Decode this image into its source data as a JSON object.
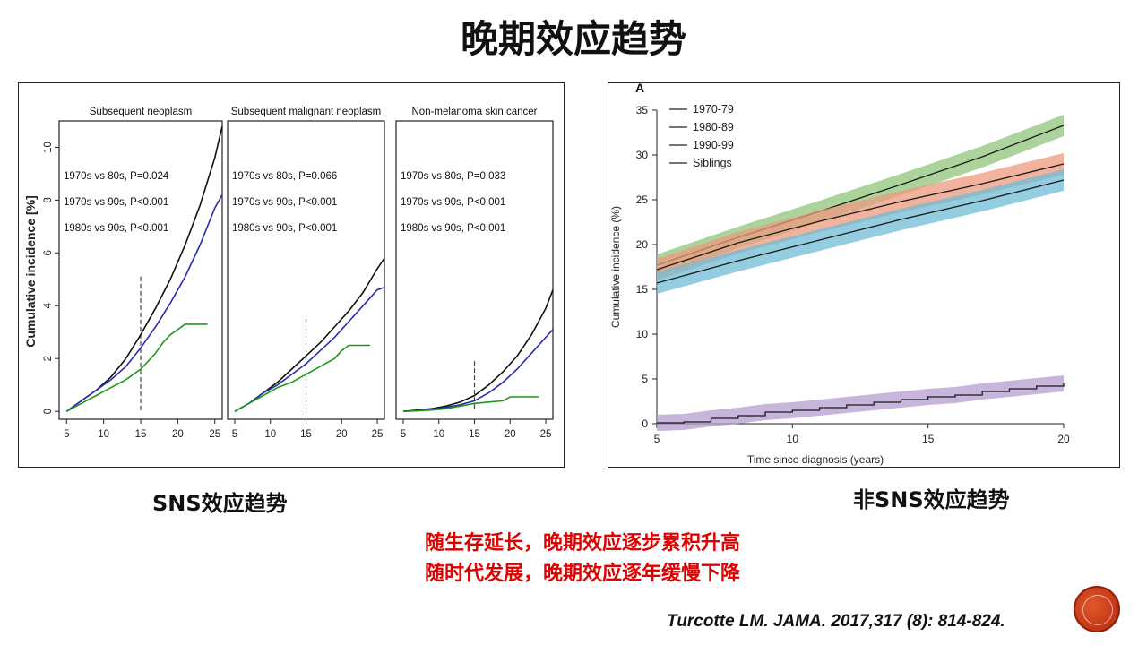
{
  "slide": {
    "title": "晚期效应趋势",
    "caption_left": "SNS效应趋势",
    "caption_right": "非SNS效应趋势",
    "conclusions": [
      "随生存延长，晚期效应逐步累积升高",
      "随时代发展，晚期效应逐年缓慢下降"
    ],
    "citation": "Turcotte LM. JAMA. 2017,317 (8): 814-824."
  },
  "chart_data": [
    {
      "type": "line",
      "panel_group": "SNS",
      "ylabel": "Cumulative incidence [%]",
      "xlim": [
        4,
        26
      ],
      "ylim": [
        -0.3,
        11
      ],
      "xticks": [
        5,
        10,
        15,
        20,
        25
      ],
      "yticks": [
        0,
        2,
        4,
        6,
        8,
        10
      ],
      "colors": [
        "#111111",
        "#2b2bb0",
        "#1a9a1a"
      ],
      "vline": 15,
      "panels": [
        {
          "title": "Subsequent neoplasm",
          "annotations": [
            "1970s vs 80s, P=0.024",
            "1970s vs 90s, P<0.001",
            "1980s vs 90s, P<0.001"
          ],
          "series": [
            {
              "x": [
                5,
                7,
                9,
                11,
                13,
                15,
                17,
                19,
                21,
                23,
                25,
                26
              ],
              "values": [
                0,
                0.4,
                0.8,
                1.3,
                2.0,
                2.9,
                3.9,
                5.0,
                6.3,
                7.8,
                9.6,
                10.8
              ]
            },
            {
              "x": [
                5,
                7,
                9,
                11,
                13,
                15,
                17,
                19,
                21,
                23,
                25,
                26
              ],
              "values": [
                0,
                0.4,
                0.8,
                1.2,
                1.7,
                2.4,
                3.2,
                4.1,
                5.1,
                6.3,
                7.7,
                8.2
              ]
            },
            {
              "x": [
                5,
                7,
                9,
                11,
                13,
                15,
                16,
                17,
                18,
                19,
                20,
                21,
                24
              ],
              "values": [
                0,
                0.3,
                0.6,
                0.9,
                1.2,
                1.6,
                1.9,
                2.2,
                2.6,
                2.9,
                3.1,
                3.3,
                3.3
              ]
            }
          ]
        },
        {
          "title": "Subsequent malignant neoplasm",
          "annotations": [
            "1970s vs 80s, P=0.066",
            "1970s vs 90s, P<0.001",
            "1980s vs 90s, P<0.001"
          ],
          "series": [
            {
              "x": [
                5,
                7,
                9,
                11,
                13,
                15,
                17,
                19,
                21,
                23,
                25,
                26
              ],
              "values": [
                0,
                0.3,
                0.7,
                1.1,
                1.6,
                2.1,
                2.6,
                3.2,
                3.8,
                4.5,
                5.4,
                5.8
              ]
            },
            {
              "x": [
                5,
                7,
                9,
                11,
                13,
                15,
                17,
                19,
                21,
                23,
                25,
                26
              ],
              "values": [
                0,
                0.3,
                0.7,
                1.0,
                1.4,
                1.8,
                2.3,
                2.8,
                3.4,
                4.0,
                4.6,
                4.7
              ]
            },
            {
              "x": [
                5,
                7,
                9,
                11,
                13,
                15,
                17,
                19,
                20,
                21,
                24
              ],
              "values": [
                0,
                0.3,
                0.6,
                0.9,
                1.1,
                1.4,
                1.7,
                2.0,
                2.3,
                2.5,
                2.5
              ]
            }
          ]
        },
        {
          "title": "Non-melanoma skin cancer",
          "annotations": [
            "1970s vs 80s, P=0.033",
            "1970s vs 90s, P<0.001",
            "1980s vs 90s, P<0.001"
          ],
          "series": [
            {
              "x": [
                5,
                7,
                9,
                11,
                13,
                15,
                17,
                19,
                21,
                23,
                25,
                26
              ],
              "values": [
                0,
                0.05,
                0.1,
                0.2,
                0.35,
                0.6,
                1.0,
                1.5,
                2.1,
                2.9,
                3.9,
                4.6
              ]
            },
            {
              "x": [
                5,
                7,
                9,
                11,
                13,
                15,
                17,
                19,
                21,
                23,
                25,
                26
              ],
              "values": [
                0,
                0.03,
                0.08,
                0.15,
                0.25,
                0.4,
                0.7,
                1.1,
                1.6,
                2.2,
                2.8,
                3.1
              ]
            },
            {
              "x": [
                5,
                7,
                9,
                11,
                13,
                15,
                17,
                19,
                20,
                24
              ],
              "values": [
                0,
                0.02,
                0.05,
                0.1,
                0.2,
                0.3,
                0.35,
                0.4,
                0.55,
                0.55
              ]
            }
          ]
        }
      ]
    },
    {
      "type": "line",
      "panel_group": "non-SNS",
      "panel_label": "A",
      "xlabel": "Time since diagnosis (years)",
      "ylabel": "Cumulative incidence (%)",
      "xlim": [
        5,
        20
      ],
      "ylim": [
        0,
        35
      ],
      "xticks": [
        5,
        10,
        15,
        20
      ],
      "yticks": [
        0,
        5,
        10,
        15,
        20,
        25,
        30,
        35
      ],
      "legend": "top-left",
      "series": [
        {
          "name": "1970-79",
          "color": "#1a1a1a",
          "band": "#8fc47a",
          "x": [
            5,
            8,
            11,
            14,
            17,
            20
          ],
          "values": [
            17.7,
            20.8,
            23.7,
            26.7,
            29.8,
            33.3
          ]
        },
        {
          "name": "1980-89",
          "color": "#1a1a1a",
          "band": "#ee9a7e",
          "x": [
            5,
            8,
            11,
            14,
            17,
            20
          ],
          "values": [
            17.2,
            20.2,
            22.6,
            24.8,
            26.8,
            29.0
          ]
        },
        {
          "name": "1990-99",
          "color": "#1a1a1a",
          "band": "#6fbcd4",
          "x": [
            5,
            8,
            11,
            14,
            17,
            20
          ],
          "values": [
            15.7,
            18.2,
            20.5,
            22.8,
            24.9,
            27.2
          ]
        },
        {
          "name": "Siblings",
          "color": "#1a1a1a",
          "band": "#b49cd0",
          "x": [
            5,
            6,
            7,
            8,
            9,
            10,
            11,
            12,
            13,
            14,
            15,
            16,
            17,
            18,
            19,
            20
          ],
          "values": [
            0.1,
            0.2,
            0.6,
            0.9,
            1.3,
            1.5,
            1.8,
            2.1,
            2.4,
            2.7,
            3.0,
            3.2,
            3.6,
            3.9,
            4.2,
            4.5
          ]
        }
      ]
    }
  ]
}
